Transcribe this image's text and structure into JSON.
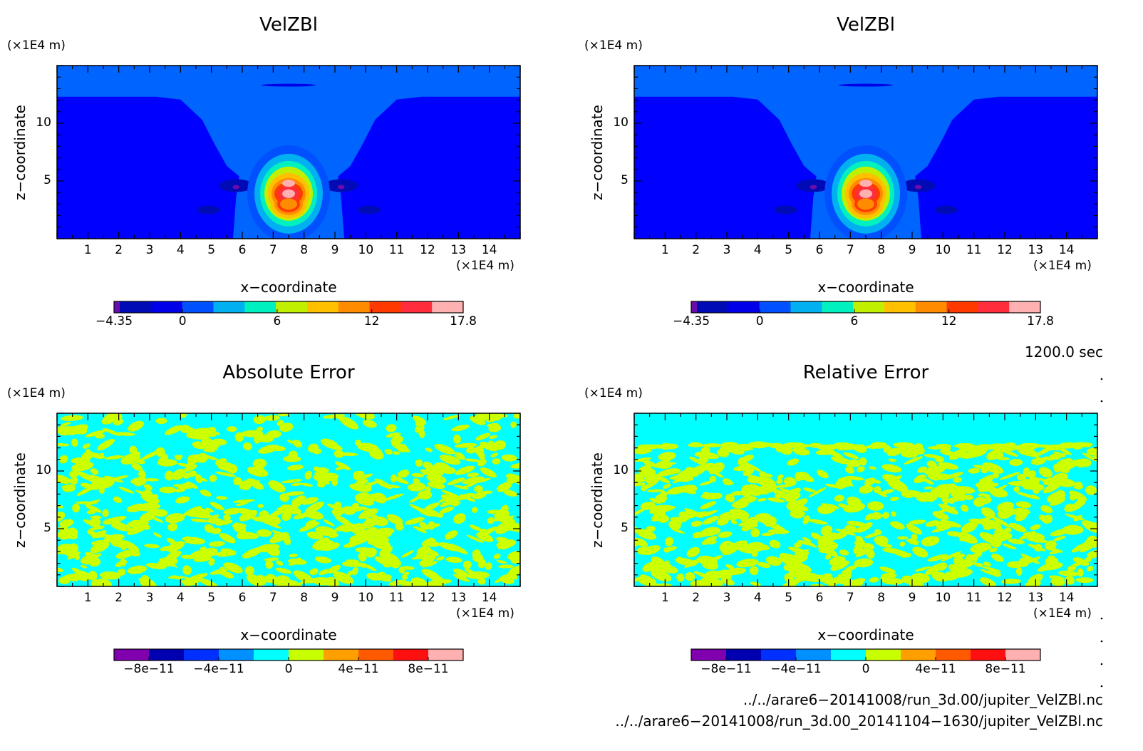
{
  "chart_data": [
    {
      "type": "heatmap",
      "title": "VelZBl",
      "xlabel": "x−coordinate",
      "ylabel": "z−coordinate",
      "x_unit": "(×1E4 m)",
      "y_unit": "(×1E4 m)",
      "xlim": [
        0,
        15
      ],
      "ylim": [
        0,
        15
      ],
      "x_ticks": [
        1,
        2,
        3,
        4,
        5,
        6,
        7,
        8,
        9,
        10,
        11,
        12,
        13,
        14
      ],
      "y_ticks": [
        5,
        10
      ],
      "colorbar": {
        "range": [
          -4.35,
          17.8
        ],
        "tick_values": [
          -4.35,
          0,
          6,
          12,
          17.8
        ],
        "tick_labels": [
          "−4.35",
          "0",
          "6",
          "12",
          "17.8"
        ],
        "colors": [
          "#6a0dad",
          "#000bb5",
          "#0000e8",
          "#0050ff",
          "#00b0f0",
          "#00f0c0",
          "#c0f000",
          "#ffc000",
          "#ff8c00",
          "#ff3a00",
          "#ff2e3c",
          "#ffb0b0"
        ]
      },
      "field": {
        "background": "#0000ff",
        "upper_band_level": "#0064ff",
        "upper_band_z": 12.3,
        "max": 17.8,
        "min": -4.35,
        "max_center": [
          7.5,
          4.8
        ],
        "secondary_max_center": [
          7.5,
          3.0
        ],
        "min_centers": [
          [
            5.8,
            4.6
          ],
          [
            9.2,
            4.6
          ]
        ]
      }
    },
    {
      "type": "heatmap",
      "title": "VelZBl",
      "xlabel": "x−coordinate",
      "ylabel": "z−coordinate",
      "x_unit": "(×1E4 m)",
      "y_unit": "(×1E4 m)",
      "xlim": [
        0,
        15
      ],
      "ylim": [
        0,
        15
      ],
      "x_ticks": [
        1,
        2,
        3,
        4,
        5,
        6,
        7,
        8,
        9,
        10,
        11,
        12,
        13,
        14
      ],
      "y_ticks": [
        5,
        10
      ],
      "colorbar": {
        "range": [
          -4.35,
          17.8
        ],
        "tick_values": [
          -4.35,
          0,
          6,
          12,
          17.8
        ],
        "tick_labels": [
          "−4.35",
          "0",
          "6",
          "12",
          "17.8"
        ],
        "colors": [
          "#6a0dad",
          "#000bb5",
          "#0000e8",
          "#0050ff",
          "#00b0f0",
          "#00f0c0",
          "#c0f000",
          "#ffc000",
          "#ff8c00",
          "#ff3a00",
          "#ff2e3c",
          "#ffb0b0"
        ]
      },
      "field": {
        "background": "#0000ff",
        "upper_band_level": "#0064ff",
        "upper_band_z": 12.3,
        "max": 17.8,
        "min": -4.35,
        "max_center": [
          7.5,
          4.8
        ],
        "secondary_max_center": [
          7.5,
          3.0
        ],
        "min_centers": [
          [
            5.8,
            4.6
          ],
          [
            9.2,
            4.6
          ]
        ]
      }
    },
    {
      "type": "heatmap",
      "title": "Absolute Error",
      "xlabel": "x−coordinate",
      "ylabel": "z−coordinate",
      "x_unit": "(×1E4 m)",
      "y_unit": "(×1E4 m)",
      "xlim": [
        0,
        15
      ],
      "ylim": [
        0,
        15
      ],
      "x_ticks": [
        1,
        2,
        3,
        4,
        5,
        6,
        7,
        8,
        9,
        10,
        11,
        12,
        13,
        14
      ],
      "y_ticks": [
        5,
        10
      ],
      "colorbar": {
        "range": [
          -1e-10,
          1e-10
        ],
        "tick_values": [
          -8e-11,
          -4e-11,
          0,
          4e-11,
          8e-11
        ],
        "tick_labels": [
          "−8e−11",
          "−4e−11",
          "0",
          "4e−11",
          "8e−11"
        ],
        "colors": [
          "#8000b0",
          "#0000b0",
          "#0030ff",
          "#0090ff",
          "#00ffff",
          "#c8ff00",
          "#ffa000",
          "#ff5a00",
          "#ff1010",
          "#ffb0b0"
        ]
      },
      "field": {
        "pattern": "noise",
        "colors": [
          "#00ffff",
          "#ccff00"
        ],
        "top_band_z": 12.3,
        "mixed_top": true
      }
    },
    {
      "type": "heatmap",
      "title": "Relative Error",
      "xlabel": "x−coordinate",
      "ylabel": "z−coordinate",
      "x_unit": "(×1E4 m)",
      "y_unit": "(×1E4 m)",
      "xlim": [
        0,
        15
      ],
      "ylim": [
        0,
        15
      ],
      "x_ticks": [
        1,
        2,
        3,
        4,
        5,
        6,
        7,
        8,
        9,
        10,
        11,
        12,
        13,
        14
      ],
      "y_ticks": [
        5,
        10
      ],
      "colorbar": {
        "range": [
          -1e-10,
          1e-10
        ],
        "tick_values": [
          -8e-11,
          -4e-11,
          0,
          4e-11,
          8e-11
        ],
        "tick_labels": [
          "−8e−11",
          "−4e−11",
          "0",
          "4e−11",
          "8e−11"
        ],
        "colors": [
          "#8000b0",
          "#0000b0",
          "#0030ff",
          "#0090ff",
          "#00ffff",
          "#c8ff00",
          "#ffa000",
          "#ff5a00",
          "#ff1010",
          "#ffb0b0"
        ]
      },
      "field": {
        "pattern": "noise",
        "colors": [
          "#00ffff",
          "#ccff00"
        ],
        "top_band_z": 12.3,
        "mixed_top": false
      }
    }
  ],
  "time_label": "1200.0 sec",
  "file_paths": [
    "../../arare6−20141008/run_3d.00/jupiter_VelZBl.nc",
    "../../arare6−20141008/run_3d.00_20141104−1630/jupiter_VelZBl.nc"
  ]
}
